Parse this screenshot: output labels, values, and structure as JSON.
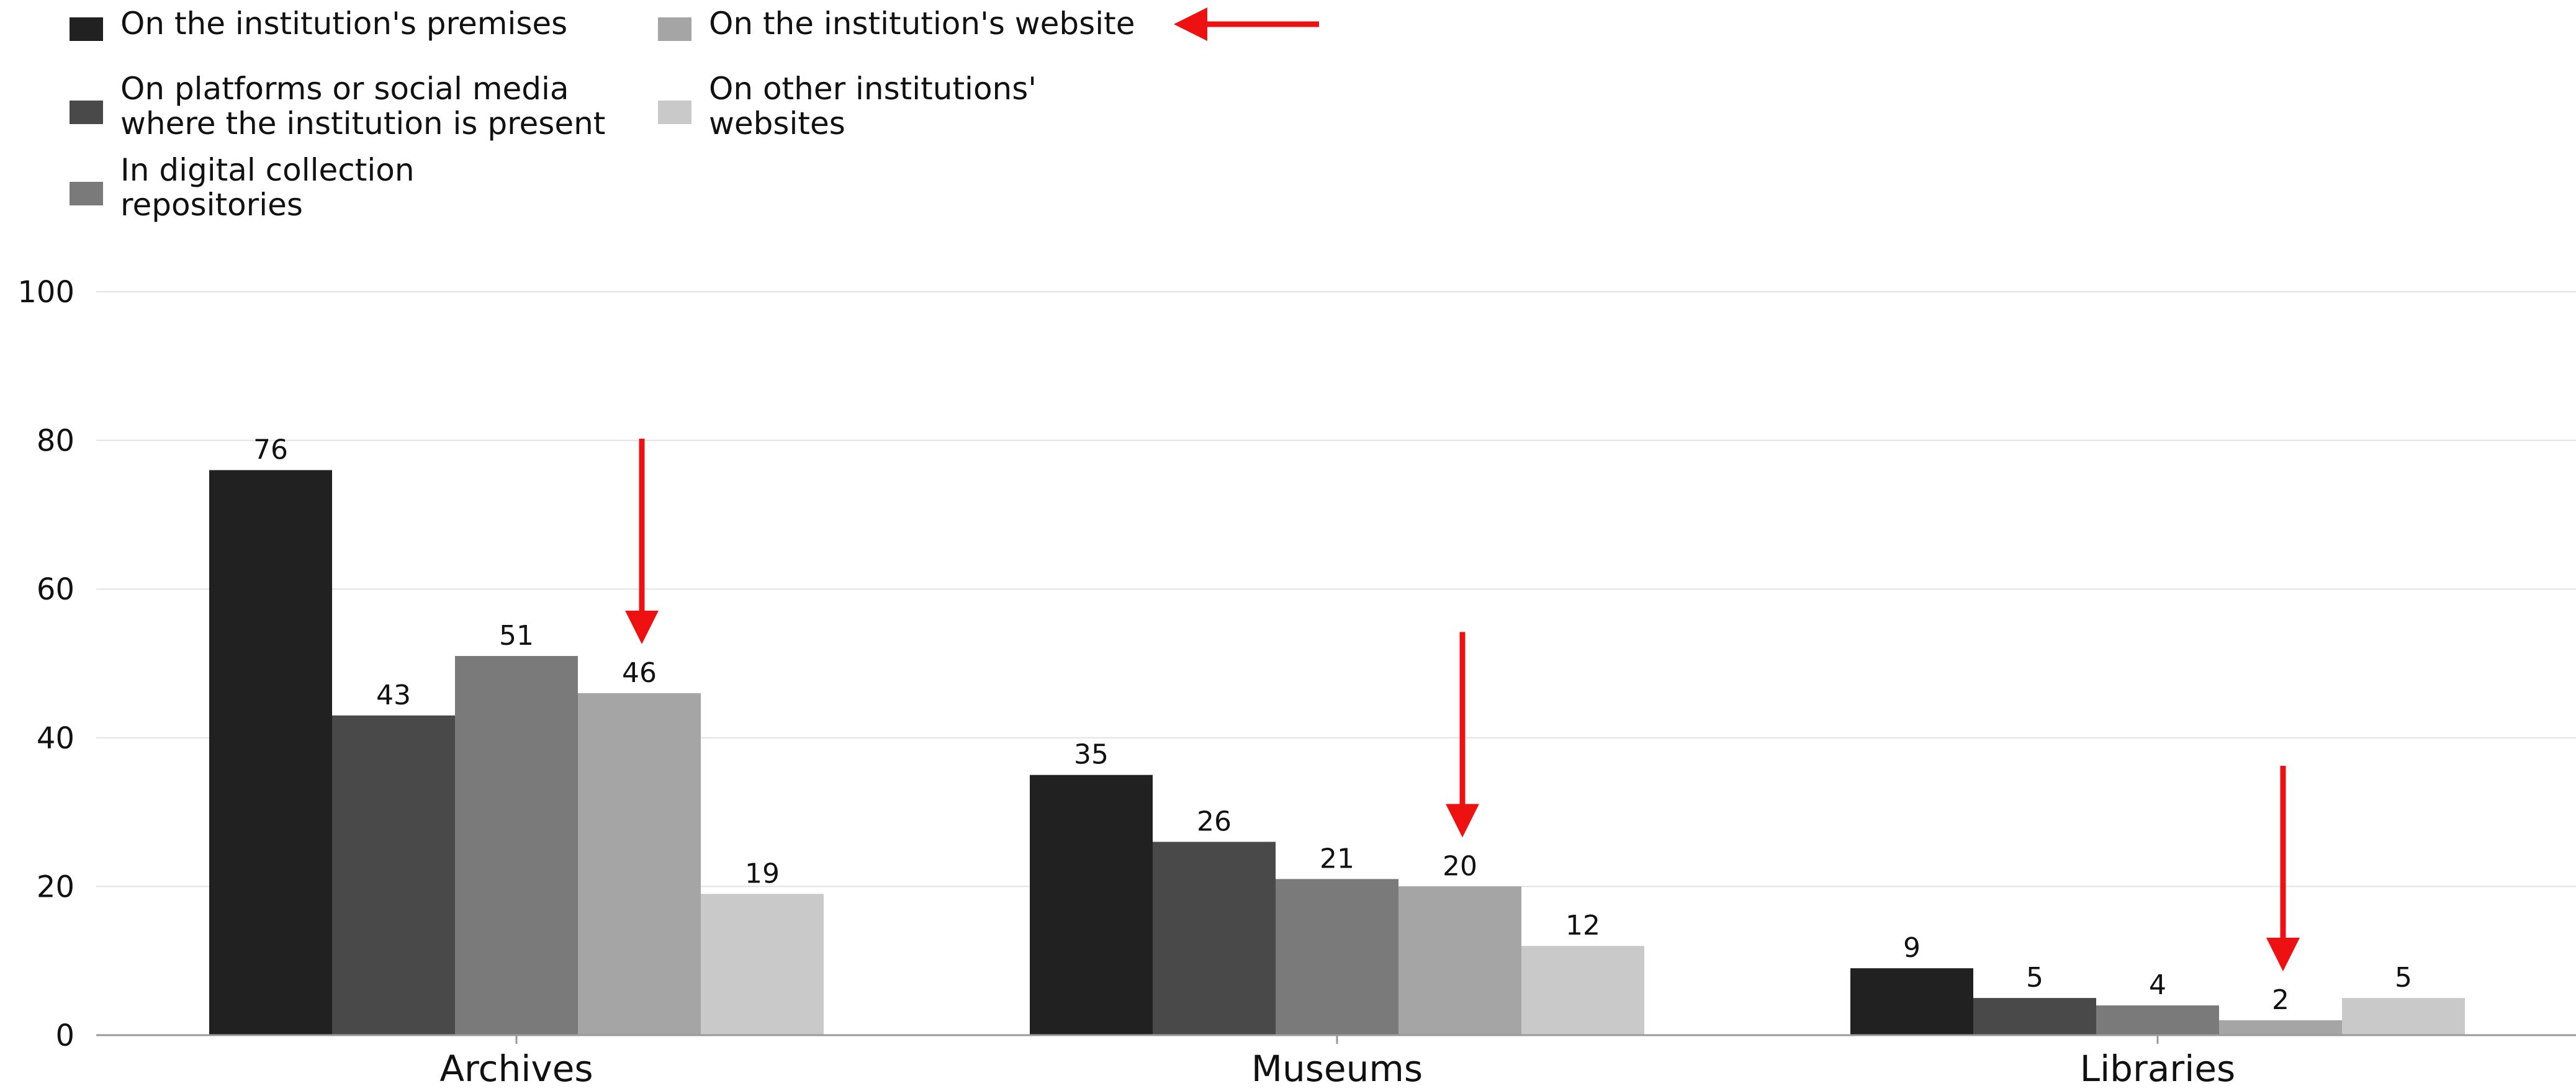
{
  "chart_data": {
    "type": "bar",
    "categories": [
      "Archives",
      "Museums",
      "Libraries"
    ],
    "series": [
      {
        "name": "On the institution's premises",
        "values": [
          76,
          35,
          9
        ],
        "color": "#212121"
      },
      {
        "name": "On platforms or social media where the institution is present",
        "values": [
          43,
          26,
          5
        ],
        "color": "#494949"
      },
      {
        "name": "In digital collection repositories",
        "values": [
          51,
          21,
          4
        ],
        "color": "#7a7a7a"
      },
      {
        "name": "On the institution's website",
        "values": [
          46,
          20,
          2
        ],
        "color": "#a5a5a5"
      },
      {
        "name": "On other institutions' websites",
        "values": [
          19,
          12,
          5
        ],
        "color": "#c9c9c9"
      }
    ],
    "legend_lines": [
      [
        "On the institution's premises"
      ],
      [
        "On platforms or social media",
        "where the institution is present"
      ],
      [
        "In digital collection",
        "repositories"
      ],
      [
        "On the institution's website"
      ],
      [
        "On other institutions'",
        "websites"
      ]
    ],
    "ylim": [
      0,
      100
    ],
    "yticks": [
      0,
      20,
      40,
      60,
      80,
      100
    ],
    "grid": true,
    "legend_position": "top-left",
    "annotations": {
      "arrow_color": "#ee1111",
      "highlighted_series": "On the institution's website",
      "description": "red arrows point to the 'On the institution's website' bar in each category and to its legend entry"
    }
  }
}
